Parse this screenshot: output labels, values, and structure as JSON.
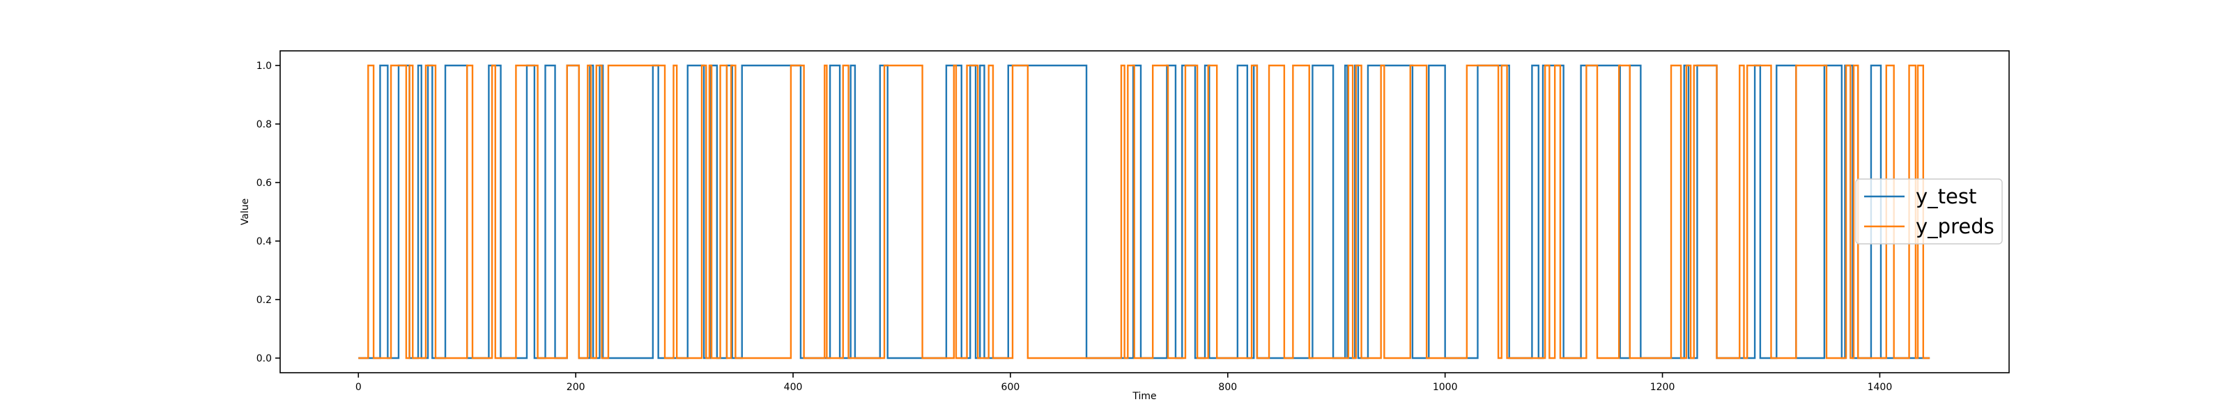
{
  "chart_data": {
    "type": "line",
    "title": "",
    "xlabel": "Time",
    "ylabel": "Value",
    "xlim": [
      -72,
      1519
    ],
    "ylim": [
      -0.05,
      1.05
    ],
    "x_ticks": [
      0,
      200,
      400,
      600,
      800,
      1000,
      1200,
      1400
    ],
    "y_ticks": [
      0.0,
      0.2,
      0.4,
      0.6,
      0.8,
      1.0
    ],
    "legend": {
      "position": "center-right"
    },
    "grid": false,
    "x_range": [
      0,
      1446
    ],
    "series": [
      {
        "name": "y_test",
        "color": "#1f77b4",
        "segments": [
          [
            0,
            0
          ],
          [
            20,
            1
          ],
          [
            27,
            0
          ],
          [
            37,
            1
          ],
          [
            47,
            0
          ],
          [
            55,
            1
          ],
          [
            58,
            0
          ],
          [
            64,
            1
          ],
          [
            68,
            0
          ],
          [
            80,
            1
          ],
          [
            100,
            0
          ],
          [
            120,
            1
          ],
          [
            131,
            0
          ],
          [
            155,
            1
          ],
          [
            162,
            0
          ],
          [
            172,
            1
          ],
          [
            181,
            0
          ],
          [
            192,
            1
          ],
          [
            203,
            0
          ],
          [
            213,
            1
          ],
          [
            216,
            0
          ],
          [
            222,
            1
          ],
          [
            225,
            0
          ],
          [
            271,
            1
          ],
          [
            276,
            0
          ],
          [
            303,
            1
          ],
          [
            318,
            0
          ],
          [
            324,
            1
          ],
          [
            330,
            0
          ],
          [
            339,
            1
          ],
          [
            344,
            0
          ],
          [
            353,
            1
          ],
          [
            407,
            0
          ],
          [
            434,
            1
          ],
          [
            443,
            0
          ],
          [
            453,
            1
          ],
          [
            457,
            0
          ],
          [
            480,
            1
          ],
          [
            487,
            0
          ],
          [
            541,
            1
          ],
          [
            555,
            0
          ],
          [
            563,
            1
          ],
          [
            568,
            0
          ],
          [
            572,
            1
          ],
          [
            576,
            0
          ],
          [
            598,
            1
          ],
          [
            670,
            0
          ],
          [
            713,
            1
          ],
          [
            720,
            0
          ],
          [
            744,
            1
          ],
          [
            752,
            0
          ],
          [
            758,
            1
          ],
          [
            770,
            0
          ],
          [
            779,
            1
          ],
          [
            783,
            0
          ],
          [
            809,
            1
          ],
          [
            818,
            0
          ],
          [
            824,
            1
          ],
          [
            827,
            0
          ],
          [
            878,
            1
          ],
          [
            897,
            0
          ],
          [
            908,
            1
          ],
          [
            910,
            0
          ],
          [
            917,
            1
          ],
          [
            920,
            0
          ],
          [
            929,
            1
          ],
          [
            970,
            0
          ],
          [
            985,
            1
          ],
          [
            1000,
            0
          ],
          [
            1030,
            1
          ],
          [
            1059,
            0
          ],
          [
            1080,
            1
          ],
          [
            1086,
            0
          ],
          [
            1090,
            1
          ],
          [
            1109,
            0
          ],
          [
            1125,
            1
          ],
          [
            1161,
            0
          ],
          [
            1170,
            1
          ],
          [
            1180,
            0
          ],
          [
            1220,
            1
          ],
          [
            1224,
            0
          ],
          [
            1232,
            1
          ],
          [
            1250,
            0
          ],
          [
            1285,
            1
          ],
          [
            1290,
            0
          ],
          [
            1305,
            1
          ],
          [
            1323,
            0
          ],
          [
            1349,
            1
          ],
          [
            1365,
            0
          ],
          [
            1368,
            1
          ],
          [
            1375,
            0
          ],
          [
            1392,
            1
          ],
          [
            1401,
            0
          ]
        ]
      },
      {
        "name": "y_preds",
        "color": "#ff7f0e",
        "segments": [
          [
            0,
            0
          ],
          [
            9,
            1
          ],
          [
            14,
            0
          ],
          [
            30,
            1
          ],
          [
            44,
            0
          ],
          [
            47,
            1
          ],
          [
            50,
            0
          ],
          [
            62,
            1
          ],
          [
            71,
            0
          ],
          [
            100,
            1
          ],
          [
            105,
            0
          ],
          [
            123,
            1
          ],
          [
            126,
            0
          ],
          [
            145,
            1
          ],
          [
            165,
            0
          ],
          [
            192,
            1
          ],
          [
            203,
            0
          ],
          [
            211,
            1
          ],
          [
            214,
            0
          ],
          [
            219,
            1
          ],
          [
            224,
            0
          ],
          [
            230,
            1
          ],
          [
            282,
            0
          ],
          [
            290,
            1
          ],
          [
            293,
            0
          ],
          [
            316,
            1
          ],
          [
            320,
            0
          ],
          [
            323,
            1
          ],
          [
            325,
            0
          ],
          [
            333,
            1
          ],
          [
            339,
            0
          ],
          [
            343,
            1
          ],
          [
            347,
            0
          ],
          [
            398,
            1
          ],
          [
            410,
            0
          ],
          [
            429,
            1
          ],
          [
            431,
            0
          ],
          [
            446,
            1
          ],
          [
            451,
            0
          ],
          [
            484,
            1
          ],
          [
            519,
            0
          ],
          [
            548,
            1
          ],
          [
            550,
            0
          ],
          [
            560,
            1
          ],
          [
            570,
            0
          ],
          [
            580,
            1
          ],
          [
            584,
            0
          ],
          [
            602,
            1
          ],
          [
            616,
            0
          ],
          [
            702,
            1
          ],
          [
            705,
            0
          ],
          [
            708,
            1
          ],
          [
            714,
            0
          ],
          [
            731,
            1
          ],
          [
            745,
            0
          ],
          [
            761,
            1
          ],
          [
            772,
            0
          ],
          [
            782,
            1
          ],
          [
            790,
            0
          ],
          [
            822,
            1
          ],
          [
            827,
            0
          ],
          [
            838,
            1
          ],
          [
            852,
            0
          ],
          [
            860,
            1
          ],
          [
            875,
            0
          ],
          [
            911,
            1
          ],
          [
            915,
            0
          ],
          [
            918,
            1
          ],
          [
            923,
            0
          ],
          [
            941,
            1
          ],
          [
            944,
            0
          ],
          [
            968,
            1
          ],
          [
            983,
            0
          ],
          [
            1020,
            1
          ],
          [
            1049,
            0
          ],
          [
            1052,
            1
          ],
          [
            1057,
            0
          ],
          [
            1092,
            1
          ],
          [
            1096,
            0
          ],
          [
            1101,
            1
          ],
          [
            1106,
            0
          ],
          [
            1130,
            1
          ],
          [
            1140,
            0
          ],
          [
            1160,
            1
          ],
          [
            1170,
            0
          ],
          [
            1208,
            1
          ],
          [
            1217,
            0
          ],
          [
            1222,
            1
          ],
          [
            1226,
            0
          ],
          [
            1229,
            1
          ],
          [
            1250,
            0
          ],
          [
            1271,
            1
          ],
          [
            1275,
            0
          ],
          [
            1278,
            1
          ],
          [
            1300,
            0
          ],
          [
            1323,
            1
          ],
          [
            1351,
            0
          ],
          [
            1369,
            1
          ],
          [
            1373,
            0
          ],
          [
            1376,
            1
          ],
          [
            1380,
            0
          ],
          [
            1406,
            1
          ],
          [
            1413,
            0
          ],
          [
            1427,
            1
          ],
          [
            1433,
            0
          ],
          [
            1435,
            1
          ],
          [
            1440,
            0
          ]
        ]
      }
    ]
  }
}
